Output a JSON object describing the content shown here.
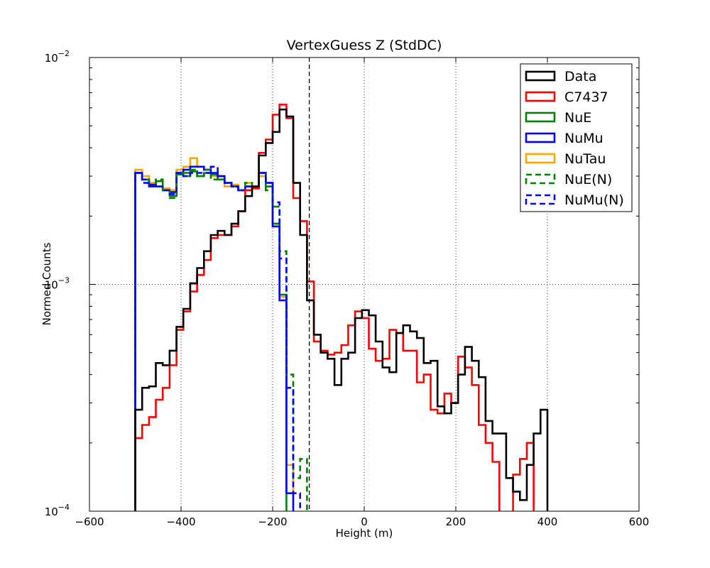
{
  "chart_data": {
    "type": "step-histogram",
    "title": "VertexGuess Z (StdDC)",
    "xlabel": "Height (m)",
    "ylabel": "Normed Counts",
    "xlim": [
      -600,
      600
    ],
    "ylim": [
      0.0001,
      0.01
    ],
    "yscale": "log",
    "grid": true,
    "legend_position": "top-right",
    "xticks": [
      "−600",
      "−400",
      "−200",
      "0",
      "200",
      "400",
      "600"
    ],
    "yticks": [
      {
        "base": "10",
        "exp": "−4",
        "value": 0.0001
      },
      {
        "base": "10",
        "exp": "−3",
        "value": 0.001
      },
      {
        "base": "10",
        "exp": "−2",
        "value": 0.01
      }
    ],
    "cut_line_x": -120,
    "bin_width": 15,
    "series": [
      {
        "name": "Data",
        "color": "#000000",
        "dashed": false,
        "x0": -500,
        "values": [
          0.00028,
          0.00035,
          0.000355,
          0.00045,
          0.00044,
          0.00051,
          0.00065,
          0.00078,
          0.00101,
          0.00118,
          0.0014,
          0.00165,
          0.00172,
          0.00165,
          0.00185,
          0.0021,
          0.00245,
          0.0027,
          0.0037,
          0.0042,
          0.0047,
          0.0059,
          0.0055,
          0.0028,
          0.00165,
          0.00085,
          0.0006,
          0.0005,
          0.00047,
          0.00036,
          0.00047,
          0.0005,
          0.00071,
          0.00077,
          0.00073,
          0.00056,
          0.00043,
          0.00041,
          0.00061,
          0.00066,
          0.00062,
          0.00058,
          0.00045,
          0.00046,
          0.00029,
          0.00027,
          0.0003,
          0.0004,
          0.00053,
          0.00046,
          0.00039,
          0.00025,
          0.00022,
          0.00022,
          0.00014,
          0.000122,
          0.000112,
          0.00016,
          0.00022,
          0.00028
        ]
      },
      {
        "name": "C7437",
        "color": "#ff0000",
        "dashed": false,
        "x0": -500,
        "values": [
          0.00021,
          0.00024,
          0.00026,
          0.00031,
          0.00035,
          0.00044,
          0.00063,
          0.00076,
          0.00093,
          0.0011,
          0.00128,
          0.0016,
          0.00165,
          0.00165,
          0.0018,
          0.0021,
          0.0026,
          0.00265,
          0.0038,
          0.00435,
          0.0056,
          0.0062,
          0.0054,
          0.0024,
          0.0019,
          0.00103,
          0.00056,
          0.00051,
          0.00049,
          0.0005,
          0.00054,
          0.00066,
          0.00076,
          0.00071,
          0.00052,
          0.00046,
          0.00047,
          0.00063,
          0.00061,
          0.00051,
          0.00051,
          0.00037,
          0.0004,
          0.00028,
          0.00027,
          0.00033,
          0.0003,
          0.00048,
          0.00043,
          0.00036,
          0.00024,
          0.0002,
          0.000165,
          9e-05,
          9e-05,
          0.000145,
          0.00017,
          0.0002
        ]
      },
      {
        "name": "NuE",
        "color": "#008000",
        "dashed": false,
        "x0": -500,
        "values": [
          0.0031,
          0.0029,
          0.0027,
          0.00285,
          0.0026,
          0.00245,
          0.00305,
          0.0031,
          0.00315,
          0.003,
          0.0031,
          0.00305,
          0.0029,
          0.0028,
          0.0027,
          0.0026,
          0.0027,
          0.00265,
          0.0031,
          0.0027,
          0.00185,
          0.0009,
          5e-05
        ]
      },
      {
        "name": "NuMu",
        "color": "#0000ff",
        "dashed": false,
        "x0": -500,
        "values": [
          0.0031,
          0.0029,
          0.00275,
          0.0027,
          0.0026,
          0.00255,
          0.0031,
          0.0032,
          0.0033,
          0.0033,
          0.0032,
          0.0031,
          0.003,
          0.0028,
          0.0027,
          0.0026,
          0.0027,
          0.0027,
          0.0031,
          0.0028,
          0.0018,
          0.00085,
          0.00012,
          5e-05
        ]
      },
      {
        "name": "NuTau",
        "color": "#ffa500",
        "dashed": false,
        "x0": -500,
        "values": [
          0.0032,
          0.003,
          0.0028,
          0.0027,
          0.00265,
          0.0026,
          0.0032,
          0.0033,
          0.0036,
          0.0033,
          0.0032,
          0.003,
          0.0029,
          0.0027,
          0.00275,
          0.0026,
          0.0028,
          0.0027,
          0.003,
          0.0027,
          0.00185,
          0.00088,
          0.00016,
          5e-05
        ]
      },
      {
        "name": "NuE(N)",
        "color": "#008000",
        "dashed": true,
        "x0": -500,
        "values": [
          0.0031,
          0.0029,
          0.0027,
          0.0029,
          0.0026,
          0.0024,
          0.0031,
          0.003,
          0.0032,
          0.003,
          0.0032,
          0.0029,
          0.0029,
          0.0028,
          0.0027,
          0.0026,
          0.0028,
          0.0027,
          0.0031,
          0.0026,
          0.0022,
          0.0014,
          0.0004,
          0.00014,
          0.00017
        ]
      },
      {
        "name": "NuMu(N)",
        "color": "#0000ff",
        "dashed": true,
        "x0": -500,
        "values": [
          0.0031,
          0.0028,
          0.0027,
          0.0027,
          0.0026,
          0.0025,
          0.0031,
          0.003,
          0.0031,
          0.0031,
          0.0031,
          0.0033,
          0.003,
          0.0028,
          0.0027,
          0.0026,
          0.0027,
          0.0027,
          0.0031,
          0.0028,
          0.0023,
          0.0013,
          0.00035,
          0.00012
        ]
      }
    ]
  }
}
